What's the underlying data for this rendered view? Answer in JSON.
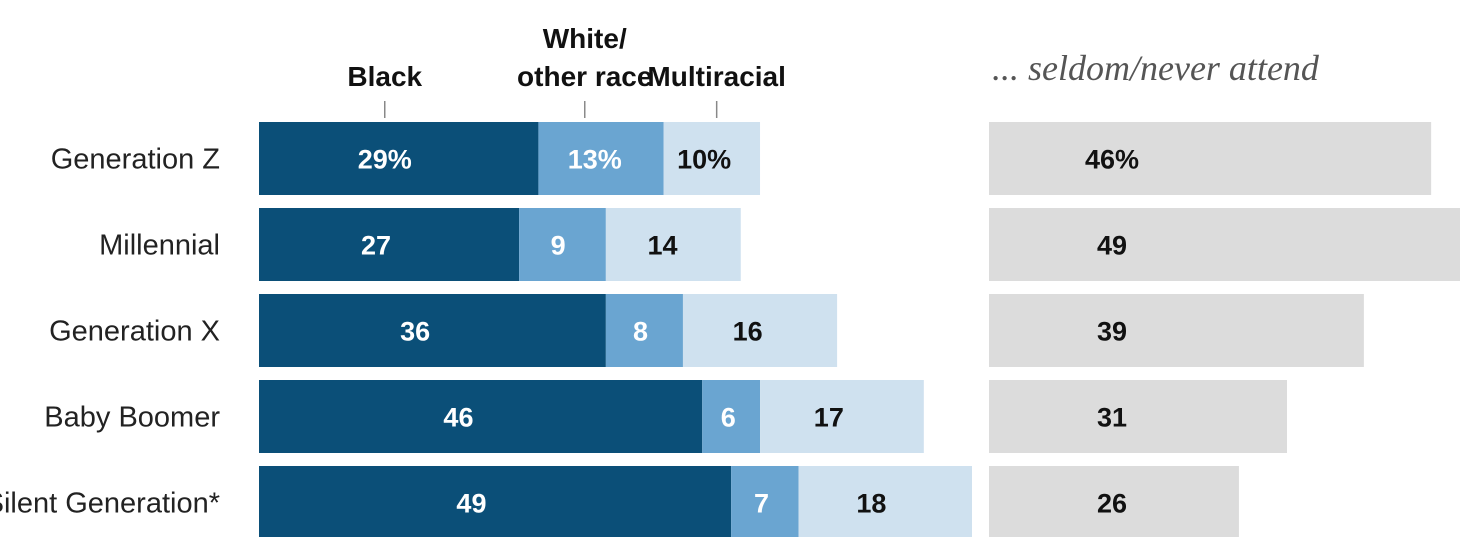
{
  "chart_data": [
    {
      "type": "bar",
      "stacked": true,
      "orientation": "horizontal",
      "categories": [
        "Generation Z",
        "Millennial",
        "Generation X",
        "Baby Boomer",
        "Silent Generation*"
      ],
      "series": [
        {
          "name": "Black",
          "values": [
            29,
            27,
            36,
            46,
            49
          ],
          "labels": [
            "29%",
            "27",
            "36",
            "46",
            "49"
          ],
          "color": "#0b4f78",
          "label_color": "#ffffff"
        },
        {
          "name": "White/\nother race",
          "values": [
            13,
            9,
            8,
            6,
            7
          ],
          "labels": [
            "13%",
            "9",
            "8",
            "6",
            "7"
          ],
          "color": "#6aa5d1",
          "label_color": "#ffffff"
        },
        {
          "name": "Multiracial",
          "values": [
            10,
            14,
            16,
            17,
            18
          ],
          "labels": [
            "10%",
            "14",
            "16",
            "17",
            "18"
          ],
          "color": "#cfe1ef",
          "label_color": "#111111"
        }
      ],
      "xlim": [
        0,
        74
      ],
      "legend": "column headers above bars"
    },
    {
      "type": "bar",
      "orientation": "horizontal",
      "title": "... seldom/never attend",
      "categories": [
        "Generation Z",
        "Millennial",
        "Generation X",
        "Baby Boomer",
        "Silent Generation*"
      ],
      "values": [
        46,
        49,
        39,
        31,
        26
      ],
      "labels": [
        "46%",
        "49",
        "39",
        "31",
        "26"
      ],
      "color": "#dcdcdc",
      "label_color": "#111111",
      "xlim": [
        0,
        49
      ]
    }
  ]
}
